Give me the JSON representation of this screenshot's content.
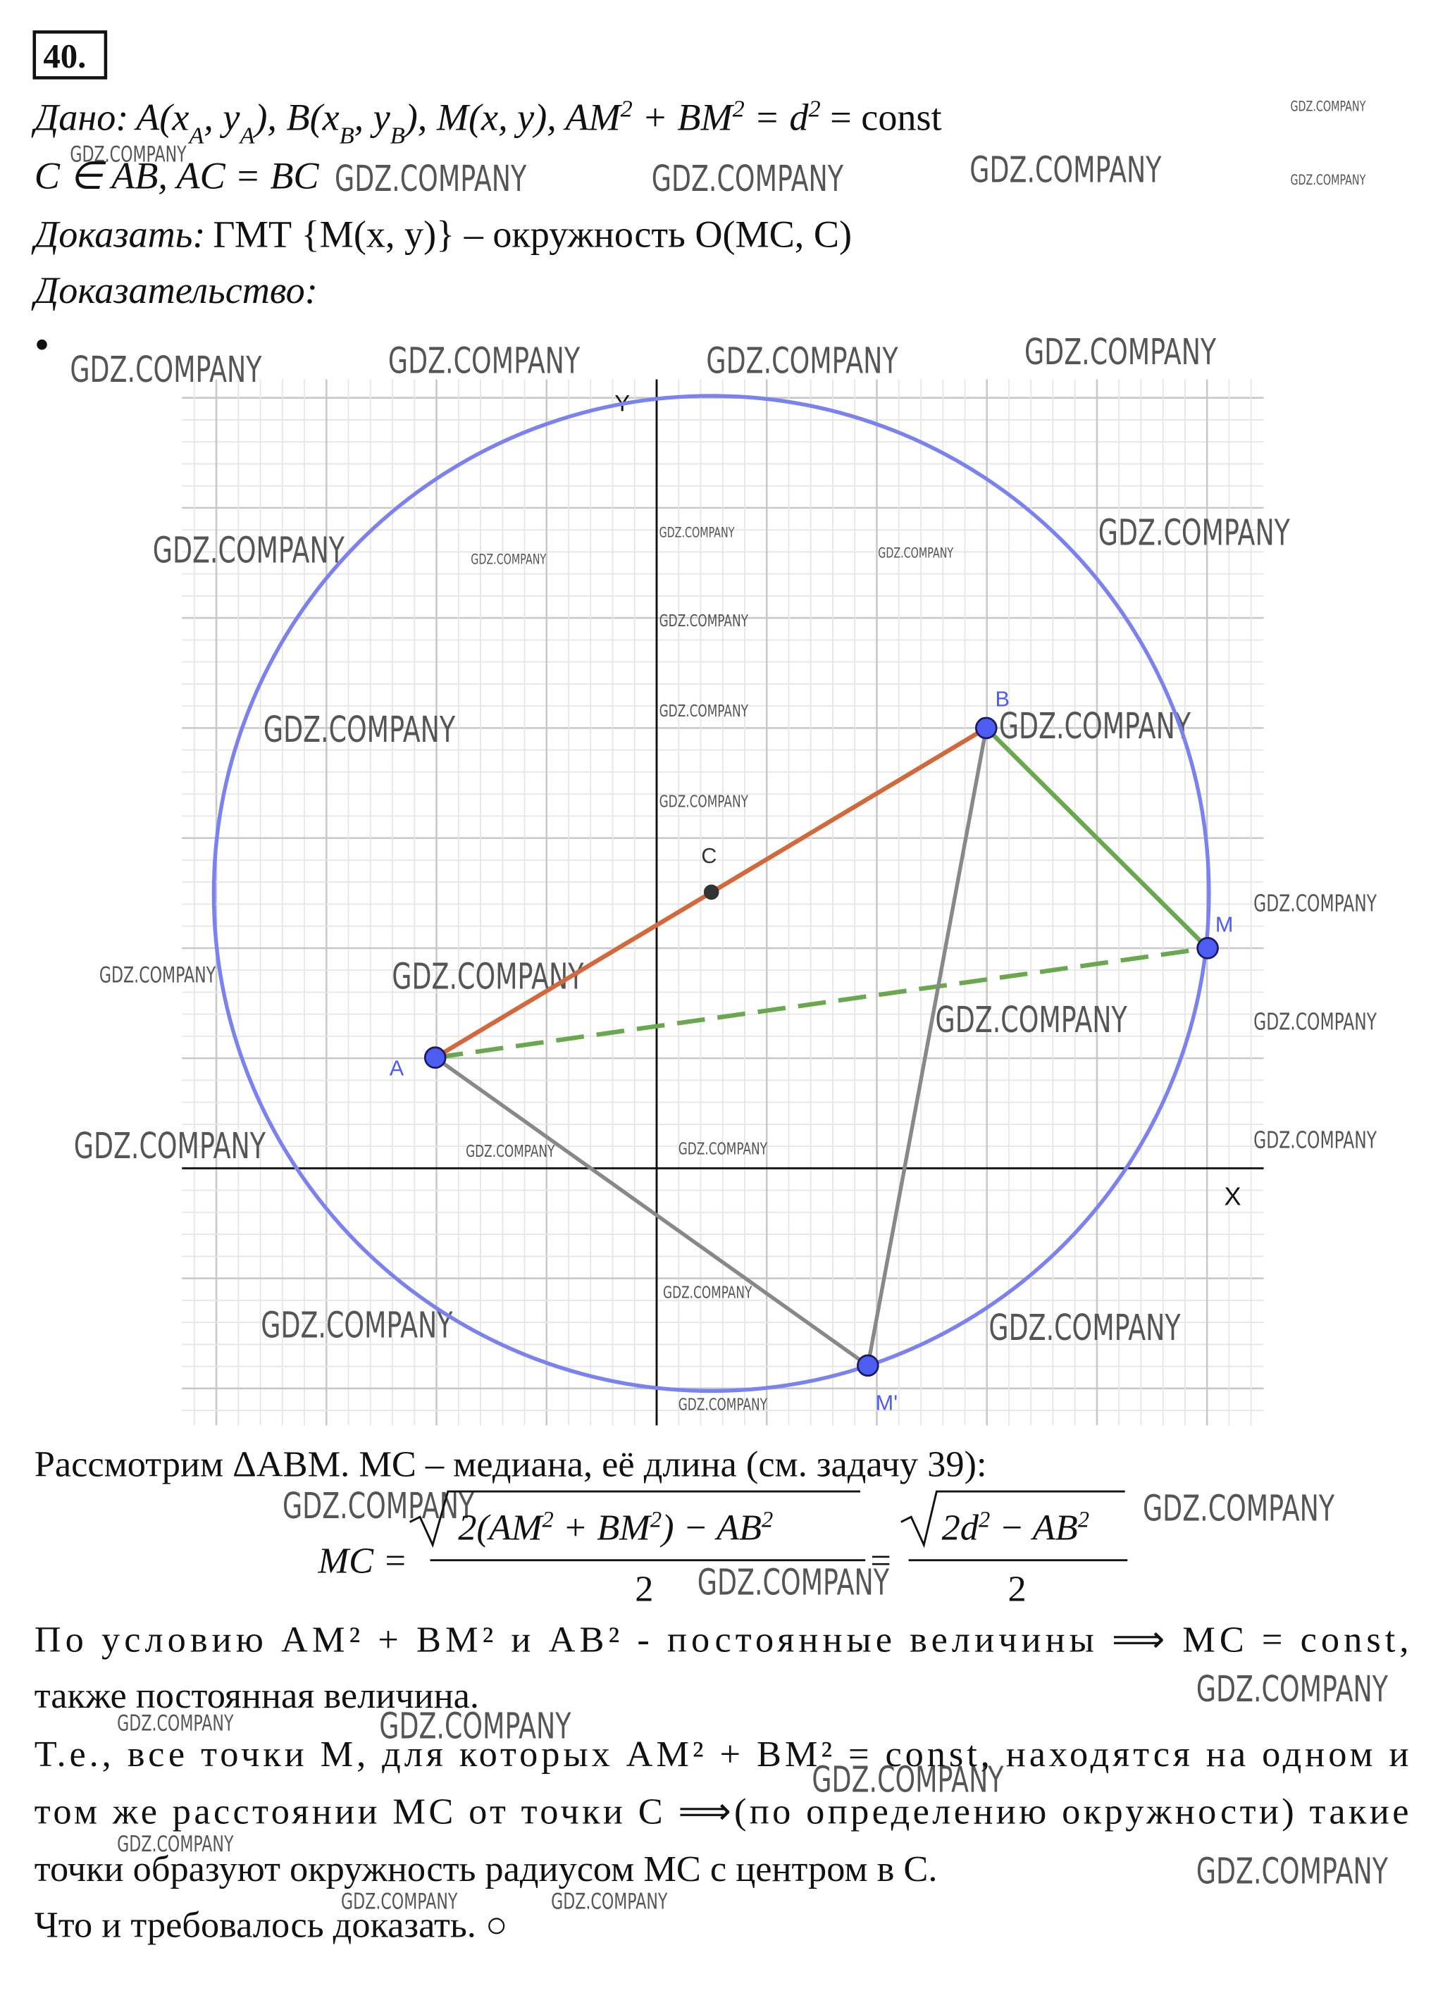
{
  "problem_number": "40.",
  "given": {
    "label": "Дано:",
    "line1": [
      "A(x",
      "A",
      ", y",
      "A",
      "), B(x",
      "B",
      ", y",
      "B",
      "), M(x, y),  AM",
      "2",
      " + BM",
      "2",
      " = d",
      "2",
      " = const"
    ],
    "line2": "C ∈ AB, AC = BC"
  },
  "prove": {
    "label": "Доказать:",
    "text": "ГМТ {M(x, y)} – окружность O(MC, C)"
  },
  "proof_label": "Доказательство:",
  "diagram": {
    "axis_x": "X",
    "axis_y": "Y",
    "points": {
      "A": "A",
      "B": "B",
      "C": "C",
      "M": "M",
      "M_prime": "M'"
    }
  },
  "paragraph1": "Рассмотрим ΔABM. MC – медиана, её длина (см. задачу 39):",
  "formula": {
    "lhs": "MC =",
    "numerator1": [
      "2(AM",
      "2",
      " + BM",
      "2",
      ") − AB",
      "2"
    ],
    "denominator1": "2",
    "equals": "=",
    "numerator2": [
      "2d",
      "2",
      " − AB",
      "2"
    ],
    "denominator2": "2"
  },
  "paragraph2": [
    "По условию AM² + BM² и AB² - постоянные величины ⟹ MC = const,",
    "также постоянная величина."
  ],
  "paragraph3": [
    "Т.е., все точки M, для которых AM² + BM² = const, находятся на одном и",
    "том же расстоянии MC от точки C ⟹(по определению окружности) такие",
    "точки образуют окружность радиусом MC с центром в C."
  ],
  "conclusion": "Что и требовалось доказать. ○",
  "bullet": "•",
  "watermark": "GDZ.COMPANY"
}
